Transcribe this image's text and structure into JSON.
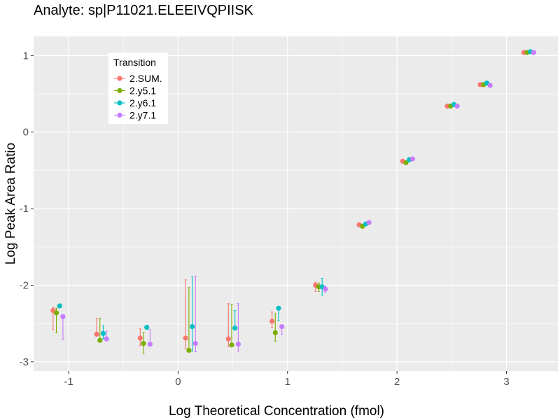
{
  "chart_data": {
    "type": "scatter",
    "title": "Analyte: sp|P11021.ELEEIVQPIISK",
    "xlabel": "Log Theoretical Concentration (fmol)",
    "ylabel": "Log Peak Area Ratio",
    "xlim": [
      -1.32,
      3.47
    ],
    "ylim": [
      -3.12,
      1.25
    ],
    "x_ticks": [
      -1,
      0,
      1,
      2,
      3
    ],
    "x_tick_labels": [
      "-1",
      "0",
      "1",
      "2",
      "3"
    ],
    "y_ticks": [
      -3,
      -2,
      -1,
      0,
      1
    ],
    "y_tick_labels": [
      "-3",
      "-2",
      "-1",
      "0",
      "1"
    ],
    "grid": true,
    "legend": {
      "title": "Transition",
      "position": "top-left inside"
    },
    "concentrations": [
      -1.097,
      -0.699,
      -0.301,
      0.114,
      0.505,
      0.903,
      1.301,
      1.699,
      2.097,
      2.505,
      2.806,
      3.204
    ],
    "series": [
      {
        "name": "2.SUM.",
        "color": "#F8766D",
        "y": [
          -2.33,
          -2.64,
          -2.69,
          -2.69,
          -2.7,
          -2.47,
          -2.0,
          -1.21,
          -0.38,
          0.34,
          0.62,
          1.04
        ],
        "err_low": [
          -2.58,
          -2.65,
          -2.79,
          -2.83,
          -2.8,
          -2.55,
          -2.08,
          -1.23,
          -0.39,
          0.33,
          0.61,
          1.03
        ],
        "err_high": [
          -2.29,
          -2.43,
          -2.57,
          -1.93,
          -2.24,
          -2.35,
          -1.96,
          -1.2,
          -0.37,
          0.35,
          0.63,
          1.05
        ]
      },
      {
        "name": "2.y5.1",
        "color": "#7CAE00",
        "y": [
          -2.36,
          -2.72,
          -2.76,
          -2.85,
          -2.78,
          -2.62,
          -2.02,
          -1.23,
          -0.4,
          0.34,
          0.62,
          1.04
        ],
        "err_low": [
          -2.62,
          -2.73,
          -2.89,
          -2.87,
          -2.8,
          -2.73,
          -2.08,
          -1.25,
          -0.41,
          0.33,
          0.61,
          1.03
        ],
        "err_high": [
          -2.3,
          -2.43,
          -2.62,
          -2.03,
          -2.25,
          -2.37,
          -1.97,
          -1.22,
          -0.39,
          0.35,
          0.63,
          1.05
        ]
      },
      {
        "name": "2.y6.1",
        "color": "#00BFC4",
        "y": [
          -2.27,
          -2.63,
          -2.55,
          -2.54,
          -2.56,
          -2.3,
          -2.02,
          -1.2,
          -0.36,
          0.36,
          0.64,
          1.05
        ],
        "err_low": [
          -2.27,
          -2.7,
          -2.57,
          -2.86,
          -2.57,
          -2.46,
          -2.13,
          -1.22,
          -0.37,
          0.35,
          0.63,
          1.04
        ],
        "err_high": [
          -2.26,
          -2.53,
          -2.53,
          -1.89,
          -2.33,
          -2.3,
          -1.91,
          -1.19,
          -0.35,
          0.37,
          0.65,
          1.06
        ]
      },
      {
        "name": "2.y7.1",
        "color": "#C77CFF",
        "y": [
          -2.41,
          -2.7,
          -2.77,
          -2.76,
          -2.77,
          -2.54,
          -2.05,
          -1.18,
          -0.35,
          0.34,
          0.61,
          1.04
        ],
        "err_low": [
          -2.71,
          -2.71,
          -2.78,
          -2.87,
          -2.86,
          -2.64,
          -2.09,
          -1.19,
          -0.36,
          0.33,
          0.6,
          1.03
        ],
        "err_high": [
          -2.4,
          -2.6,
          -2.58,
          -1.88,
          -2.24,
          -2.54,
          -2.01,
          -1.17,
          -0.34,
          0.35,
          0.62,
          1.05
        ]
      }
    ]
  }
}
